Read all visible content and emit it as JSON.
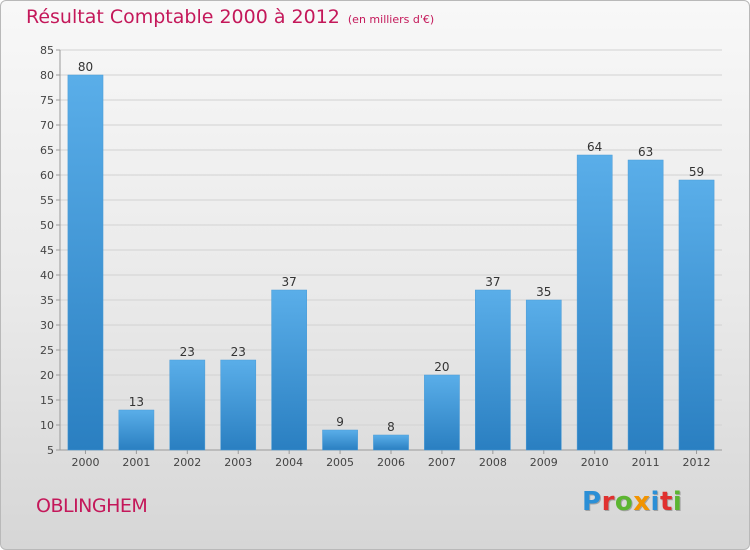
{
  "header": {
    "title": "Résultat Comptable 2000 à 2012",
    "unit": "(en milliers d'€)"
  },
  "footer": {
    "commune": "OBLINGHEM",
    "logo_text": "Proxiti",
    "logo_letters": [
      {
        "ch": "P",
        "color": "#2b8fd6"
      },
      {
        "ch": "r",
        "color": "#e0312f"
      },
      {
        "ch": "o",
        "color": "#5cb531"
      },
      {
        "ch": "x",
        "color": "#f29400"
      },
      {
        "ch": "i",
        "color": "#2b8fd6"
      },
      {
        "ch": "t",
        "color": "#e0312f"
      },
      {
        "ch": "i",
        "color": "#5cb531"
      }
    ]
  },
  "colors": {
    "bar_light": "#5aaee9",
    "bar_dark": "#2a7fc1",
    "accent": "#c4185a"
  },
  "chart_data": {
    "type": "bar",
    "title": "Résultat Comptable 2000 à 2012",
    "subtitle": "(en milliers d'€)",
    "xlabel": "",
    "ylabel": "",
    "categories": [
      "2000",
      "2001",
      "2002",
      "2003",
      "2004",
      "2005",
      "2006",
      "2007",
      "2008",
      "2009",
      "2010",
      "2011",
      "2012"
    ],
    "values": [
      80,
      13,
      23,
      23,
      37,
      9,
      8,
      20,
      37,
      35,
      64,
      63,
      59
    ],
    "ylim": [
      5,
      85
    ],
    "yticks": [
      5,
      10,
      15,
      20,
      25,
      30,
      35,
      40,
      45,
      50,
      55,
      60,
      65,
      70,
      75,
      80,
      85
    ],
    "grid": true,
    "legend": "none"
  }
}
